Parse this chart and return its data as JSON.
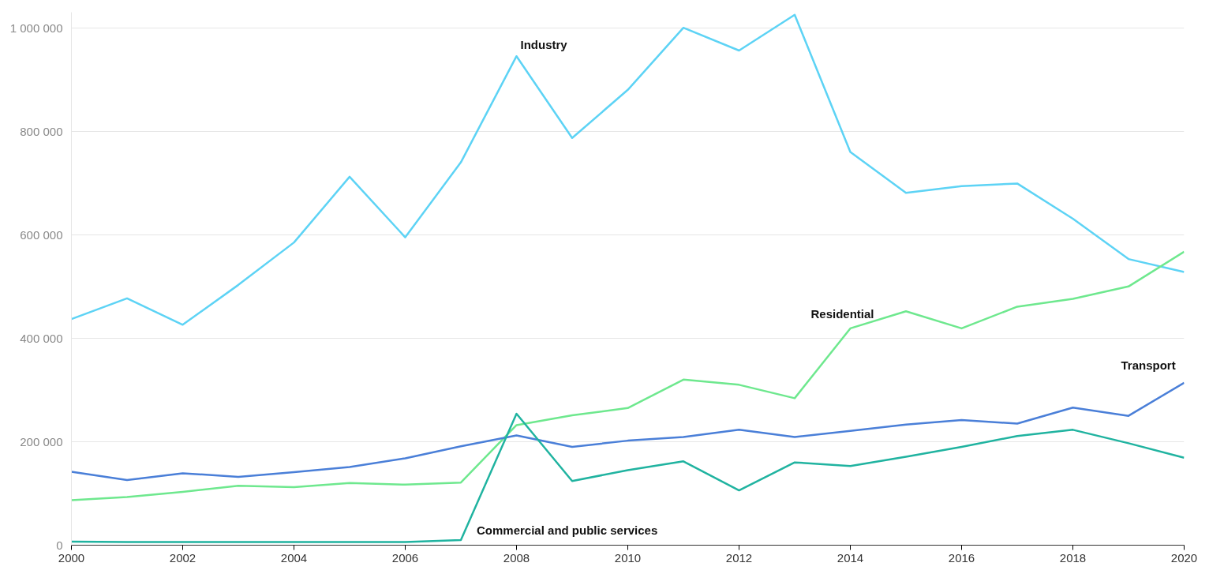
{
  "chart_data": {
    "type": "line",
    "x": [
      2000,
      2001,
      2002,
      2003,
      2004,
      2005,
      2006,
      2007,
      2008,
      2009,
      2010,
      2011,
      2012,
      2013,
      2014,
      2015,
      2016,
      2017,
      2018,
      2019,
      2020
    ],
    "series": [
      {
        "name": "Industry",
        "color": "#5dd3f5",
        "values": [
          437000,
          477000,
          426000,
          503000,
          585000,
          712000,
          595000,
          740000,
          945000,
          787000,
          880000,
          1000000,
          956000,
          1025000,
          760000,
          681000,
          694000,
          699000,
          631000,
          553000,
          528000
        ]
      },
      {
        "name": "Residential",
        "color": "#6ee88e",
        "values": [
          87000,
          93000,
          103000,
          115000,
          112000,
          120000,
          117000,
          121000,
          232000,
          251000,
          265000,
          320000,
          310000,
          284000,
          419000,
          452000,
          419000,
          461000,
          476000,
          500000,
          567000
        ]
      },
      {
        "name": "Transport",
        "color": "#4a7fd8",
        "values": [
          142000,
          126000,
          139000,
          132000,
          141000,
          151000,
          168000,
          191000,
          212000,
          190000,
          202000,
          209000,
          223000,
          209000,
          221000,
          233000,
          242000,
          235000,
          266000,
          250000,
          314000
        ]
      },
      {
        "name": "Commercial and public services",
        "color": "#20b3a0",
        "values": [
          7000,
          6000,
          6000,
          6000,
          6000,
          6000,
          6000,
          10000,
          254000,
          124000,
          145000,
          162000,
          106000,
          160000,
          153000,
          171000,
          190000,
          211000,
          223000,
          197000,
          169000
        ]
      }
    ],
    "xlim": [
      2000,
      2020
    ],
    "xticks": [
      2000,
      2002,
      2004,
      2006,
      2008,
      2010,
      2012,
      2014,
      2016,
      2018,
      2020
    ],
    "ylim": [
      0,
      1030000
    ],
    "yticks": [
      {
        "value": 0,
        "label": "0"
      },
      {
        "value": 200000,
        "label": "200 000"
      },
      {
        "value": 400000,
        "label": "400 000"
      },
      {
        "value": 600000,
        "label": "600 000"
      },
      {
        "value": 800000,
        "label": "800 000"
      },
      {
        "value": 1000000,
        "label": "1 000 000"
      }
    ],
    "grid": "y",
    "marker": "none",
    "line_style": "solid"
  }
}
